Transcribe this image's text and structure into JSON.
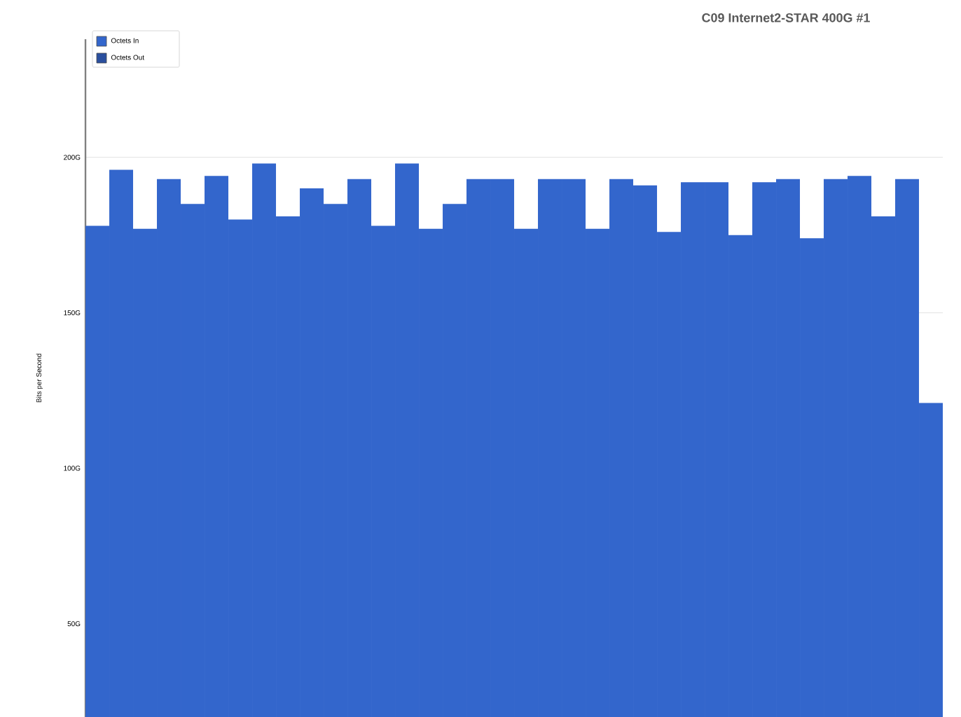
{
  "chart_data": {
    "type": "bar",
    "title": "C09 Internet2-STAR 400G #1",
    "ylabel": "Bits per Second",
    "categories": [
      null,
      null,
      null,
      null,
      null,
      null,
      null,
      null,
      null,
      null,
      null,
      null,
      null,
      null,
      null,
      null,
      null,
      null,
      null,
      null,
      null,
      null,
      null,
      null,
      null,
      null,
      null,
      null,
      null,
      null,
      null,
      null,
      null,
      null,
      null,
      null
    ],
    "ylim": [
      20,
      238
    ],
    "yticks": [
      {
        "value": 50,
        "label": "50G"
      },
      {
        "value": 100,
        "label": "100G"
      },
      {
        "value": 150,
        "label": "150G"
      },
      {
        "value": 200,
        "label": "200G"
      }
    ],
    "series": [
      {
        "name": "Octets In",
        "color": "#3366cc",
        "values": [
          178,
          196,
          177,
          193,
          185,
          194,
          180,
          198,
          181,
          190,
          185,
          193,
          178,
          198,
          177,
          185,
          193,
          193,
          177,
          193,
          193,
          177,
          193,
          191,
          176,
          192,
          192,
          175,
          192,
          193,
          174,
          193,
          194,
          181,
          193,
          121
        ]
      },
      {
        "name": "Octets Out",
        "color": "#2a4f9e",
        "values": [
          null,
          null,
          null,
          null,
          null,
          null,
          null,
          null,
          null,
          null,
          null,
          null,
          null,
          null,
          null,
          null,
          null,
          null,
          null,
          null,
          null,
          null,
          null,
          null,
          null,
          null,
          null,
          null,
          null,
          null,
          null,
          null,
          null,
          null,
          null,
          null
        ]
      }
    ],
    "grid": "y",
    "legend": "top left",
    "tick_labels": "y"
  }
}
